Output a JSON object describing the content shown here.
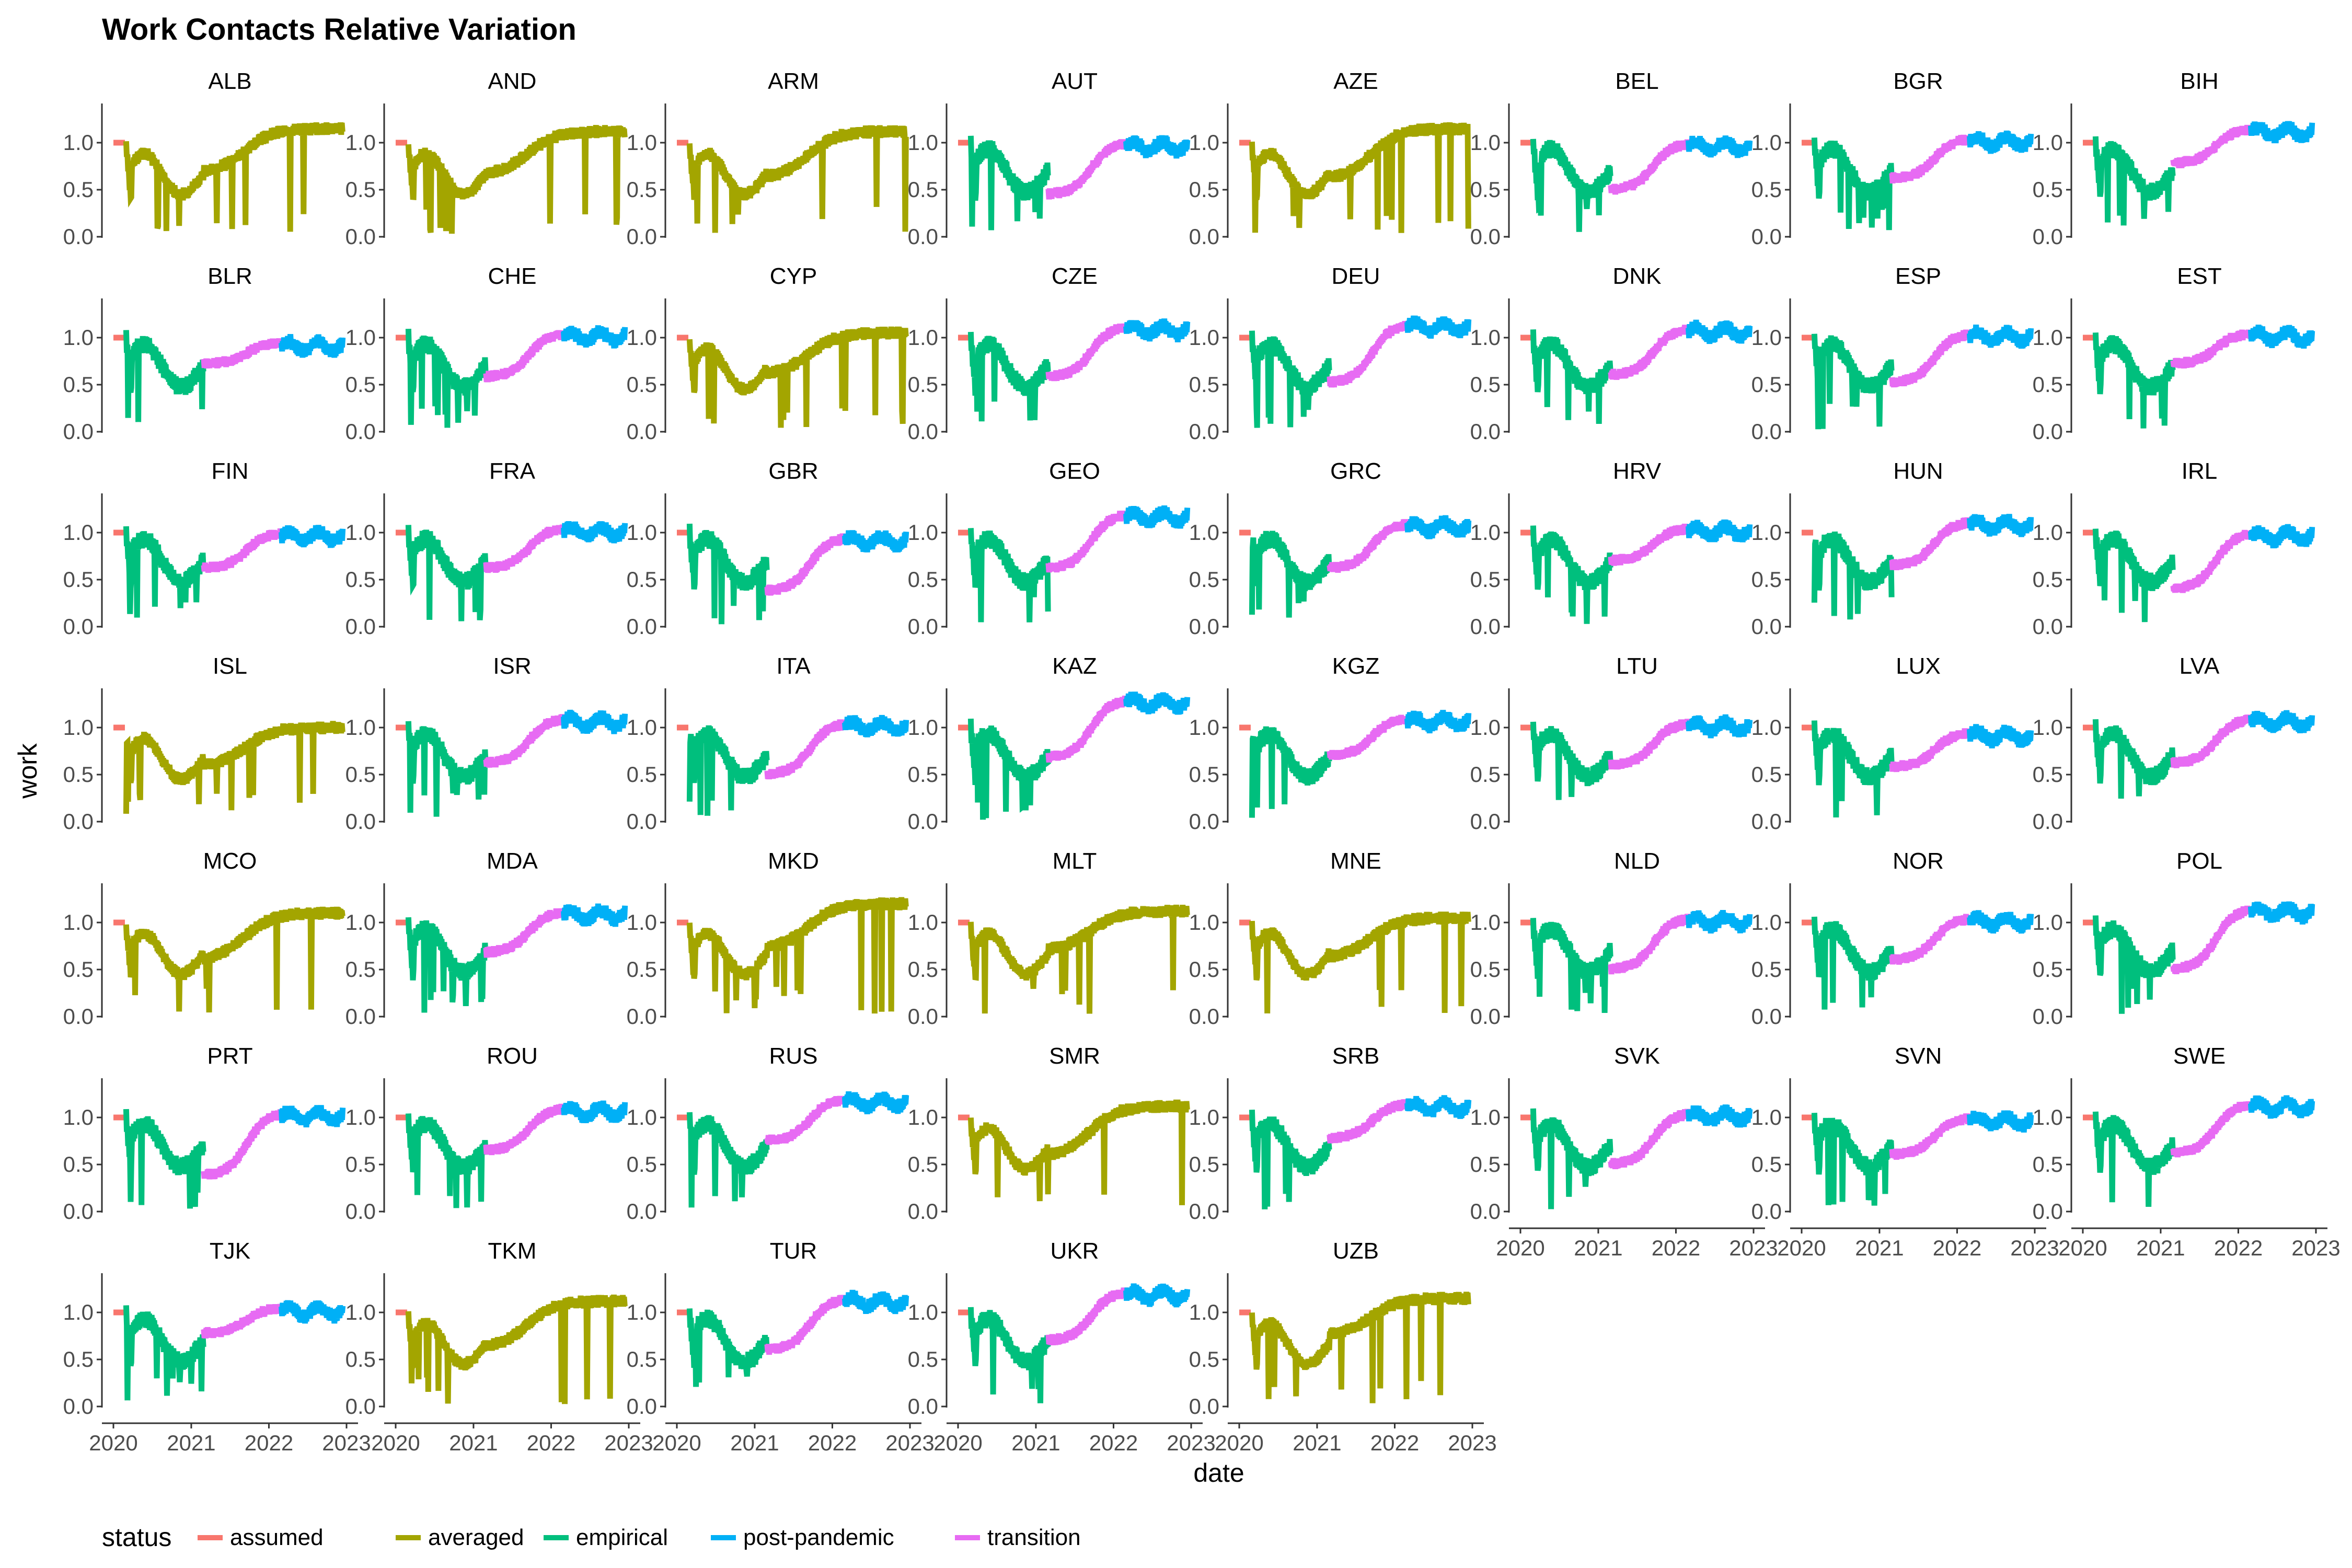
{
  "chart_data": {
    "type": "line",
    "title": "Work Contacts Relative Variation",
    "xlabel": "date",
    "ylabel": "work",
    "xlim": [
      "2020-01-01",
      "2023-01-01"
    ],
    "ylim": [
      0.0,
      1.4
    ],
    "x_ticks": [
      "2020",
      "2021",
      "2022",
      "2023"
    ],
    "y_ticks": [
      "0.0",
      "0.5",
      "1.0"
    ],
    "grid": false,
    "legend": {
      "title": "status",
      "position": "bottom-left",
      "entries": [
        {
          "name": "assumed",
          "color": "#F8766D"
        },
        {
          "name": "averaged",
          "color": "#A3A500"
        },
        {
          "name": "empirical",
          "color": "#00BF7D"
        },
        {
          "name": "post-pandemic",
          "color": "#00B0F6"
        },
        {
          "name": "transition",
          "color": "#E76BF3"
        }
      ]
    },
    "facets": [
      {
        "name": "ALB",
        "mode": "averaged",
        "low": 0.68,
        "final": 1.15
      },
      {
        "name": "AND",
        "mode": "averaged",
        "low": 0.65,
        "final": 1.12
      },
      {
        "name": "ARM",
        "mode": "averaged",
        "low": 0.62,
        "final": 1.12
      },
      {
        "name": "AUT",
        "mode": "empirical",
        "low": 0.45,
        "final": 1.0
      },
      {
        "name": "AZE",
        "mode": "averaged",
        "low": 0.6,
        "final": 1.15
      },
      {
        "name": "BEL",
        "mode": "empirical",
        "low": 0.5,
        "final": 1.0
      },
      {
        "name": "BGR",
        "mode": "empirical",
        "low": 0.62,
        "final": 1.05
      },
      {
        "name": "BIH",
        "mode": "empirical",
        "low": 0.78,
        "final": 1.15
      },
      {
        "name": "BLR",
        "mode": "empirical",
        "low": 0.72,
        "final": 0.95
      },
      {
        "name": "CHE",
        "mode": "empirical",
        "low": 0.58,
        "final": 1.05
      },
      {
        "name": "CYP",
        "mode": "averaged",
        "low": 0.6,
        "final": 1.05
      },
      {
        "name": "CZE",
        "mode": "empirical",
        "low": 0.58,
        "final": 1.12
      },
      {
        "name": "DEU",
        "mode": "empirical",
        "low": 0.52,
        "final": 1.15
      },
      {
        "name": "DNK",
        "mode": "empirical",
        "low": 0.6,
        "final": 1.1
      },
      {
        "name": "ESP",
        "mode": "empirical",
        "low": 0.52,
        "final": 1.05
      },
      {
        "name": "EST",
        "mode": "empirical",
        "low": 0.72,
        "final": 1.05
      },
      {
        "name": "FIN",
        "mode": "empirical",
        "low": 0.62,
        "final": 1.0
      },
      {
        "name": "FRA",
        "mode": "empirical",
        "low": 0.62,
        "final": 1.05
      },
      {
        "name": "GBR",
        "mode": "empirical",
        "low": 0.38,
        "final": 0.95
      },
      {
        "name": "GEO",
        "mode": "empirical",
        "low": 0.62,
        "final": 1.2
      },
      {
        "name": "GRC",
        "mode": "empirical",
        "low": 0.62,
        "final": 1.1
      },
      {
        "name": "HRV",
        "mode": "empirical",
        "low": 0.7,
        "final": 1.05
      },
      {
        "name": "HUN",
        "mode": "empirical",
        "low": 0.65,
        "final": 1.12
      },
      {
        "name": "IRL",
        "mode": "empirical",
        "low": 0.4,
        "final": 1.0
      },
      {
        "name": "ISL",
        "mode": "averaged",
        "low": 0.58,
        "final": 1.0
      },
      {
        "name": "ISR",
        "mode": "empirical",
        "low": 0.62,
        "final": 1.1
      },
      {
        "name": "ITA",
        "mode": "empirical",
        "low": 0.5,
        "final": 1.05
      },
      {
        "name": "KAZ",
        "mode": "empirical",
        "low": 0.68,
        "final": 1.3
      },
      {
        "name": "KGZ",
        "mode": "empirical",
        "low": 0.7,
        "final": 1.1
      },
      {
        "name": "LTU",
        "mode": "empirical",
        "low": 0.6,
        "final": 1.05
      },
      {
        "name": "LUX",
        "mode": "empirical",
        "low": 0.58,
        "final": 0.95
      },
      {
        "name": "LVA",
        "mode": "empirical",
        "low": 0.62,
        "final": 1.1
      },
      {
        "name": "MCO",
        "mode": "averaged",
        "low": 0.6,
        "final": 1.1
      },
      {
        "name": "MDA",
        "mode": "empirical",
        "low": 0.68,
        "final": 1.12
      },
      {
        "name": "MKD",
        "mode": "averaged",
        "low": 0.72,
        "final": 1.2
      },
      {
        "name": "MLT",
        "mode": "averaged",
        "low": 0.7,
        "final": 1.12
      },
      {
        "name": "MNE",
        "mode": "averaged",
        "low": 0.62,
        "final": 1.05
      },
      {
        "name": "NLD",
        "mode": "empirical",
        "low": 0.5,
        "final": 1.05
      },
      {
        "name": "NOR",
        "mode": "empirical",
        "low": 0.6,
        "final": 1.05
      },
      {
        "name": "POL",
        "mode": "empirical",
        "low": 0.5,
        "final": 1.15
      },
      {
        "name": "PRT",
        "mode": "empirical",
        "low": 0.38,
        "final": 1.05
      },
      {
        "name": "ROU",
        "mode": "empirical",
        "low": 0.65,
        "final": 1.1
      },
      {
        "name": "RUS",
        "mode": "empirical",
        "low": 0.75,
        "final": 1.2
      },
      {
        "name": "SMR",
        "mode": "averaged",
        "low": 0.58,
        "final": 1.12
      },
      {
        "name": "SRB",
        "mode": "empirical",
        "low": 0.78,
        "final": 1.15
      },
      {
        "name": "SVK",
        "mode": "empirical",
        "low": 0.5,
        "final": 1.05
      },
      {
        "name": "SVN",
        "mode": "empirical",
        "low": 0.6,
        "final": 1.0
      },
      {
        "name": "SWE",
        "mode": "empirical",
        "low": 0.62,
        "final": 1.15
      },
      {
        "name": "TJK",
        "mode": "empirical",
        "low": 0.78,
        "final": 1.05
      },
      {
        "name": "TKM",
        "mode": "averaged",
        "low": 0.62,
        "final": 1.12
      },
      {
        "name": "TUR",
        "mode": "empirical",
        "low": 0.6,
        "final": 1.15
      },
      {
        "name": "UKR",
        "mode": "empirical",
        "low": 0.7,
        "final": 1.22
      },
      {
        "name": "UZB",
        "mode": "averaged",
        "low": 0.75,
        "final": 1.15
      }
    ]
  }
}
